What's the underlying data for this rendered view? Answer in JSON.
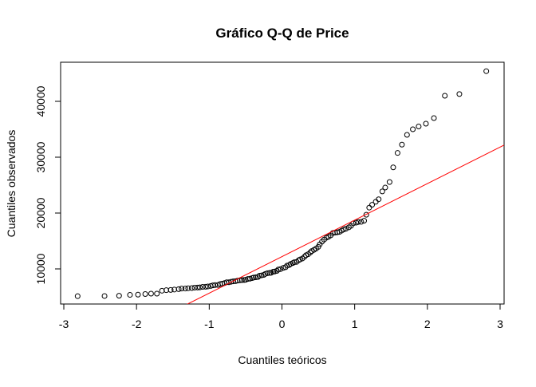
{
  "chart_data": {
    "type": "qq",
    "title": "Gráfico Q-Q de Price",
    "x_label": "Cuantiles teóricos",
    "y_label": "Cuantiles observados",
    "xlim": [
      -3.044,
      3.055
    ],
    "ylim": [
      3714,
      47000
    ],
    "xticks": [
      -3,
      -2,
      -1,
      0,
      1,
      2,
      3
    ],
    "yticks": [
      10000,
      20000,
      30000,
      40000
    ],
    "point_color": "#000000",
    "reference_line": {
      "intercept": 12200,
      "slope": 6535,
      "color": "#ff0000"
    },
    "x": [
      -2.81,
      -2.44,
      -2.24,
      -2.09,
      -1.98,
      -1.88,
      -1.8,
      -1.72,
      -1.65,
      -1.59,
      -1.53,
      -1.48,
      -1.42,
      -1.38,
      -1.33,
      -1.29,
      -1.24,
      -1.2,
      -1.16,
      -1.13,
      -1.09,
      -1.05,
      -1.02,
      -0.98,
      -0.95,
      -0.92,
      -0.88,
      -0.85,
      -0.82,
      -0.79,
      -0.76,
      -0.73,
      -0.7,
      -0.67,
      -0.64,
      -0.61,
      -0.58,
      -0.55,
      -0.52,
      -0.5,
      -0.47,
      -0.44,
      -0.41,
      -0.39,
      -0.36,
      -0.33,
      -0.31,
      -0.28,
      -0.25,
      -0.23,
      -0.2,
      -0.17,
      -0.15,
      -0.12,
      -0.1,
      -0.07,
      -0.05,
      -0.02,
      0.02,
      0.05,
      0.07,
      0.1,
      0.12,
      0.15,
      0.17,
      0.2,
      0.23,
      0.25,
      0.28,
      0.31,
      0.33,
      0.36,
      0.39,
      0.41,
      0.44,
      0.47,
      0.5,
      0.52,
      0.55,
      0.58,
      0.61,
      0.64,
      0.67,
      0.7,
      0.73,
      0.76,
      0.79,
      0.82,
      0.85,
      0.88,
      0.92,
      0.95,
      0.98,
      1.02,
      1.05,
      1.09,
      1.13,
      1.16,
      1.2,
      1.24,
      1.29,
      1.33,
      1.38,
      1.42,
      1.48,
      1.53,
      1.59,
      1.65,
      1.72,
      1.8,
      1.88,
      1.98,
      2.09,
      2.24,
      2.44,
      2.81
    ],
    "y": [
      5118,
      5151,
      5195,
      5348,
      5389,
      5499,
      5572,
      5572,
      6095,
      6189,
      6229,
      6295,
      6377,
      6479,
      6488,
      6529,
      6575,
      6649,
      6669,
      6692,
      6785,
      6795,
      6849,
      6938,
      7053,
      7099,
      7126,
      7295,
      7349,
      7463,
      7603,
      7609,
      7689,
      7775,
      7799,
      7898,
      7957,
      7995,
      8013,
      8058,
      8189,
      8249,
      8358,
      8449,
      8495,
      8558,
      8778,
      8845,
      8921,
      9095,
      9233,
      9279,
      9298,
      9495,
      9538,
      9639,
      9895,
      9960,
      10198,
      10295,
      10595,
      10698,
      10898,
      11048,
      11199,
      11245,
      11549,
      11694,
      11850,
      12170,
      12440,
      12629,
      12945,
      13200,
      13415,
      13645,
      13950,
      14399,
      14869,
      15250,
      15580,
      15750,
      15998,
      16430,
      16500,
      16558,
      16630,
      16845,
      17075,
      17199,
      17450,
      17710,
      18150,
      18280,
      18399,
      18420,
      18620,
      19699,
      20970,
      21485,
      22018,
      22470,
      23875,
      24565,
      25552,
      28176,
      30760,
      32250,
      34000,
      35000,
      35500,
      36000,
      37000,
      41000,
      41300,
      45400
    ]
  }
}
